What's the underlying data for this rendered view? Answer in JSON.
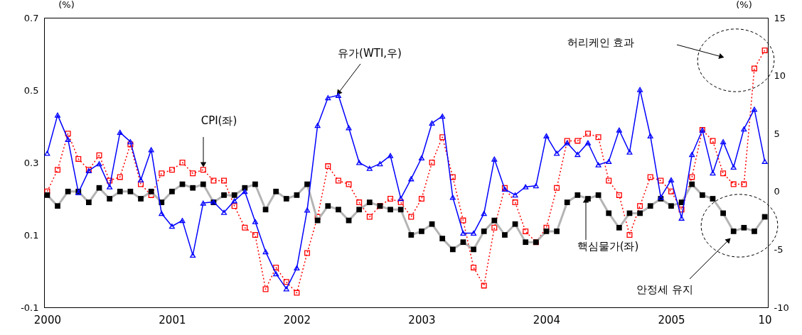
{
  "chart_data": {
    "type": "line",
    "ylabel": "(%)",
    "y2label": "(%)",
    "categories": [
      "2000",
      null,
      null,
      null,
      null,
      null,
      null,
      null,
      null,
      null,
      null,
      null,
      "2001",
      null,
      null,
      null,
      null,
      null,
      null,
      null,
      null,
      null,
      null,
      null,
      "2002",
      null,
      null,
      null,
      null,
      null,
      null,
      null,
      null,
      null,
      null,
      null,
      "2003",
      null,
      null,
      null,
      null,
      null,
      null,
      null,
      null,
      null,
      null,
      null,
      "2004",
      null,
      null,
      null,
      null,
      null,
      null,
      null,
      null,
      null,
      null,
      null,
      "2005",
      null,
      null,
      null,
      null,
      null,
      null,
      null,
      null,
      "10"
    ],
    "series": [
      {
        "name": "CPI(좌)",
        "color": "#ff0000",
        "marker": "square",
        "line_style": "dotted",
        "values": [
          0.22,
          0.28,
          0.38,
          0.31,
          0.28,
          0.32,
          0.25,
          0.26,
          0.35,
          0.24,
          0.21,
          0.27,
          0.28,
          0.3,
          0.27,
          0.28,
          0.25,
          0.25,
          0.18,
          0.12,
          0.1,
          -0.05,
          0.01,
          -0.03,
          -0.06,
          0.05,
          0.15,
          0.29,
          0.25,
          0.24,
          0.19,
          0.15,
          0.18,
          0.2,
          0.19,
          0.15,
          0.2,
          0.3,
          0.37,
          0.26,
          0.14,
          0.01,
          -0.04,
          0.12,
          0.23,
          0.19,
          0.11,
          0.08,
          0.12,
          0.23,
          0.36,
          0.36,
          0.38,
          0.37,
          0.25,
          0.21,
          0.1,
          0.18,
          0.26,
          0.25,
          0.22,
          0.17,
          0.26,
          0.39,
          0.36,
          0.27,
          0.24,
          0.24,
          0.56,
          0.61
        ]
      },
      {
        "name": "핵심물가(좌)",
        "color": "#000000",
        "marker": "square",
        "line_style": "solid",
        "values": [
          0.21,
          0.18,
          0.22,
          0.22,
          0.19,
          0.23,
          0.2,
          0.22,
          0.22,
          0.2,
          0.22,
          0.19,
          0.22,
          0.24,
          0.23,
          0.24,
          0.19,
          0.21,
          0.21,
          0.23,
          0.24,
          0.17,
          0.22,
          0.2,
          0.21,
          0.24,
          0.14,
          0.18,
          0.17,
          0.14,
          0.17,
          0.19,
          0.18,
          0.17,
          0.17,
          0.1,
          0.11,
          0.13,
          0.09,
          0.06,
          0.08,
          0.06,
          0.11,
          0.14,
          0.1,
          0.13,
          0.08,
          0.08,
          0.11,
          0.11,
          0.19,
          0.21,
          0.2,
          0.21,
          0.16,
          0.12,
          0.16,
          0.16,
          0.18,
          0.2,
          0.18,
          0.19,
          0.24,
          0.21,
          0.2,
          0.16,
          0.11,
          0.12,
          0.11,
          0.15
        ]
      },
      {
        "name": "유가(WTI,우)",
        "color": "#0000ff",
        "marker": "triangle",
        "line_style": "solid",
        "axis": "y2",
        "values": [
          3.3,
          6.6,
          4.5,
          -0.1,
          1.8,
          2.4,
          0.4,
          5.1,
          4.3,
          1.0,
          3.6,
          -1.9,
          -3.0,
          -2.5,
          -5.5,
          -1.0,
          -0.9,
          -1.8,
          -0.8,
          0.0,
          -2.6,
          -5.2,
          -7.1,
          -8.4,
          -6.6,
          -1.6,
          5.7,
          8.1,
          8.3,
          5.5,
          2.5,
          2.0,
          2.4,
          3.1,
          -0.6,
          1.1,
          2.9,
          5.9,
          6.5,
          -0.5,
          -3.6,
          -3.6,
          -1.9,
          2.8,
          0.2,
          -0.3,
          0.4,
          0.5,
          4.8,
          3.3,
          4.2,
          3.2,
          4.2,
          2.3,
          2.6,
          5.3,
          3.4,
          8.8,
          4.8,
          -0.5,
          1.0,
          -2.3,
          3.2,
          5.3,
          1.6,
          4.3,
          2.1,
          5.4,
          7.1,
          2.6
        ]
      }
    ],
    "ylim": [
      -0.1,
      0.7
    ],
    "yticks": [
      -0.1,
      0.1,
      0.3,
      0.5,
      0.7
    ],
    "y2lim": [
      -10,
      15
    ],
    "y2ticks": [
      -10,
      -5,
      0,
      5,
      10,
      15
    ],
    "annotations": [
      "허리케인 효과",
      "안정세 유지"
    ]
  }
}
